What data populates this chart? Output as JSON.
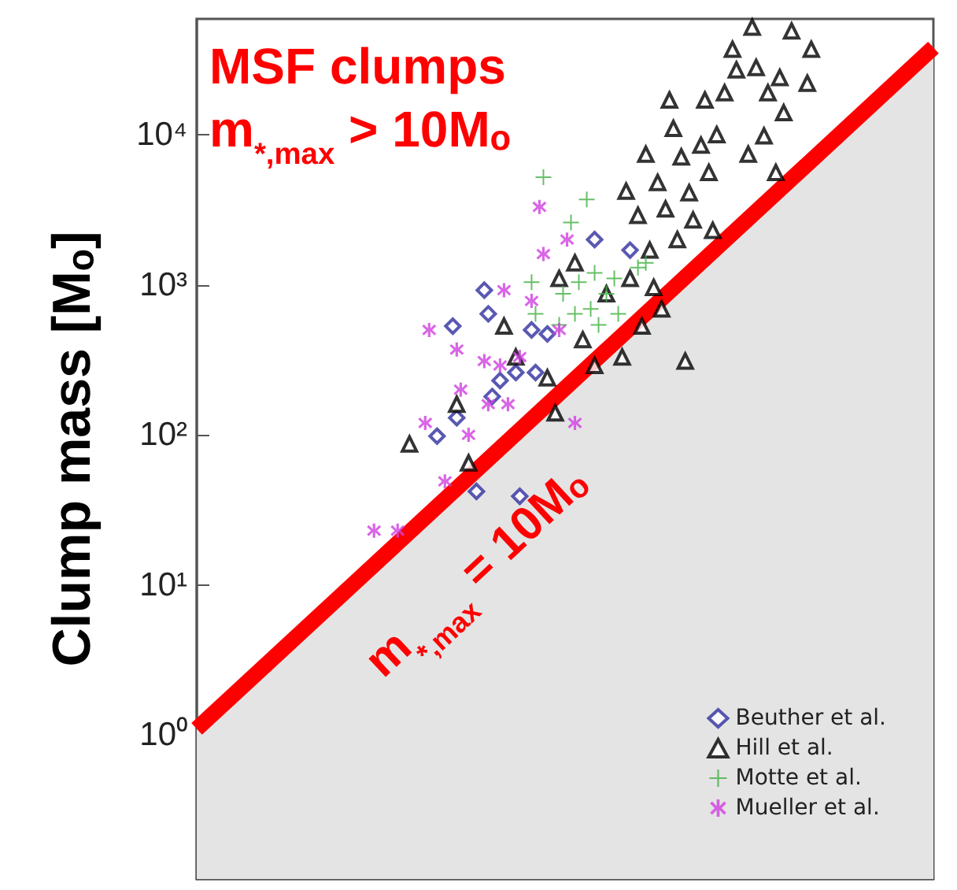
{
  "chart_data": {
    "type": "scatter",
    "ylabel": "Clump mass [Mₒ]",
    "annotations": [
      "MSF clumps",
      "m$_{*,max}$ > 10Mₒ",
      "m$_{*,max}$ = 10Mₒ"
    ],
    "log": "y",
    "categories": [
      null,
      null,
      null,
      null,
      null,
      null,
      null,
      null,
      null,
      null,
      null,
      null,
      null,
      null,
      null,
      null,
      null,
      null,
      null,
      null,
      null,
      null,
      null,
      null,
      null,
      null,
      null,
      null,
      null,
      null,
      null,
      null,
      null,
      null,
      null,
      null,
      null,
      null,
      null,
      null,
      null,
      null,
      null,
      null,
      null,
      null,
      null,
      null,
      null,
      null,
      null,
      null,
      null,
      null,
      null,
      null,
      null,
      null,
      null,
      null,
      null,
      null,
      null,
      null,
      null,
      null,
      null,
      null,
      null,
      null,
      null,
      null,
      null,
      null,
      null,
      null,
      null,
      null,
      null,
      null,
      null,
      null,
      null,
      null,
      null,
      null,
      null,
      null,
      null,
      null,
      null,
      null,
      null,
      null,
      null,
      null,
      null,
      null,
      null,
      null,
      null,
      null,
      null,
      null,
      null,
      null,
      null,
      null,
      null,
      null,
      null,
      null,
      null,
      null,
      null,
      null,
      null,
      null,
      null,
      null,
      null,
      null,
      null,
      null,
      null,
      null,
      null,
      null,
      null,
      null,
      null,
      null,
      null,
      null,
      null,
      null,
      null,
      null,
      null,
      null,
      null,
      null,
      null,
      null,
      null,
      null,
      null,
      null,
      null,
      null,
      null,
      null,
      null,
      null,
      null,
      null,
      null,
      null,
      null,
      null,
      null,
      null,
      null,
      null,
      null,
      null,
      null,
      null,
      null,
      null,
      null,
      null,
      null,
      null,
      null,
      null,
      null,
      null,
      null,
      null,
      null,
      null,
      null,
      null,
      null,
      null,
      null,
      null
    ],
    "ylim": [
      0.11,
      59000
    ],
    "yticks": [
      {
        "value": 1,
        "label": "10⁰"
      },
      {
        "value": 10,
        "label": "10¹"
      },
      {
        "value": 100,
        "label": "10²"
      },
      {
        "value": 1000,
        "label": "10³"
      },
      {
        "value": 10000,
        "label": "10⁴"
      }
    ],
    "tick_labels": "y",
    "grid": false,
    "legend": "bottom right",
    "series": [
      {
        "type": "area",
        "color": "#ff0000",
        "values": [
          1.1,
          null,
          null,
          null,
          null,
          null,
          null,
          null,
          null,
          null,
          null,
          null,
          null,
          null,
          null,
          null,
          null,
          null,
          null,
          null,
          null,
          null,
          null,
          null,
          null,
          null,
          null,
          null,
          null,
          null,
          null,
          null,
          null,
          null,
          null,
          null,
          null,
          null,
          null,
          null,
          null,
          null,
          null,
          null,
          null,
          null,
          null,
          null,
          null,
          null,
          null,
          null,
          null,
          null,
          null,
          null,
          null,
          null,
          null,
          null,
          null,
          null,
          null,
          null,
          null,
          null,
          null,
          null,
          null,
          null,
          null,
          null,
          null,
          null,
          null,
          null,
          null,
          null,
          null,
          null,
          null,
          null,
          null,
          null,
          null,
          null,
          null,
          null,
          null,
          null,
          null,
          null,
          null,
          null,
          null,
          null,
          null,
          null,
          null,
          null,
          null,
          null,
          null,
          null,
          null,
          null,
          null,
          null,
          null,
          null,
          null,
          null,
          null,
          null,
          null,
          null,
          null,
          null,
          null,
          null,
          null,
          null,
          null,
          null,
          null,
          null,
          null,
          null,
          null,
          null,
          null,
          null,
          null,
          null,
          null,
          null,
          null,
          null,
          null,
          null,
          null,
          null,
          null,
          null,
          null,
          null,
          null,
          null,
          null,
          null,
          null,
          null,
          null,
          null,
          null,
          null,
          null,
          null,
          null,
          null,
          null,
          null,
          null,
          null,
          null,
          null,
          null,
          null,
          null,
          null,
          null,
          null,
          null,
          null,
          null,
          null,
          null,
          null,
          null,
          null,
          null,
          null,
          null,
          null,
          null,
          null,
          null,
          38000
        ]
      },
      {
        "name": "Beuther et al.",
        "color": "#3030a0",
        "marker": "diamond",
        "values": [
          null,
          null,
          null,
          null,
          null,
          null,
          null,
          null,
          null,
          null,
          null,
          null,
          null,
          null,
          null,
          null,
          null,
          null,
          null,
          null,
          null,
          null,
          null,
          null,
          null,
          null,
          null,
          null,
          null,
          null,
          null,
          null,
          null,
          null,
          null,
          null,
          null,
          null,
          null,
          null,
          null,
          null,
          null,
          null,
          null,
          null,
          null,
          null,
          null,
          null,
          null,
          null,
          null,
          null,
          null,
          null,
          null,
          null,
          null,
          null,
          null,
          98,
          null,
          null,
          null,
          530,
          130,
          null,
          null,
          null,
          null,
          42,
          null,
          920,
          640,
          180,
          null,
          230,
          null,
          null,
          null,
          260,
          39,
          null,
          null,
          500,
          260,
          null,
          null,
          470,
          null,
          null,
          null,
          null,
          null,
          null,
          null,
          null,
          null,
          null,
          null,
          2000,
          null,
          null,
          null,
          null,
          null,
          null,
          null,
          null,
          1700,
          null,
          null,
          null,
          null,
          null,
          null,
          null,
          null,
          null,
          null,
          null,
          null,
          null,
          null,
          null,
          null,
          null,
          null,
          null,
          null,
          null,
          null,
          null,
          null,
          null,
          null,
          null,
          null,
          null,
          null,
          null,
          null,
          null,
          null,
          null,
          null,
          null,
          null,
          null,
          null,
          null,
          null,
          null,
          null,
          null,
          null,
          null,
          null,
          null,
          null,
          null,
          null,
          null,
          null,
          null,
          null,
          null,
          null,
          null,
          null,
          null,
          null,
          null,
          null,
          null,
          null,
          null,
          null,
          null,
          null,
          null,
          null,
          null,
          null,
          null,
          null,
          null
        ]
      },
      {
        "name": "Hill et al.",
        "color": "#000000",
        "marker": "triangle",
        "values": [
          null,
          null,
          null,
          null,
          null,
          null,
          null,
          null,
          null,
          null,
          null,
          null,
          null,
          null,
          null,
          null,
          null,
          null,
          null,
          null,
          null,
          null,
          null,
          null,
          null,
          null,
          null,
          null,
          null,
          null,
          null,
          null,
          null,
          null,
          null,
          null,
          null,
          null,
          null,
          null,
          null,
          null,
          null,
          null,
          null,
          null,
          null,
          null,
          null,
          null,
          null,
          null,
          null,
          null,
          87,
          null,
          null,
          null,
          null,
          null,
          null,
          null,
          null,
          null,
          null,
          null,
          160,
          null,
          null,
          65,
          null,
          null,
          null,
          null,
          null,
          null,
          null,
          null,
          530,
          null,
          null,
          330,
          null,
          null,
          null,
          null,
          null,
          null,
          null,
          240,
          null,
          140,
          1100,
          null,
          null,
          null,
          1400,
          null,
          430,
          null,
          null,
          290,
          null,
          null,
          870,
          null,
          null,
          null,
          330,
          4200,
          1100,
          null,
          2900,
          530,
          7400,
          1700,
          960,
          4800,
          690,
          3200,
          17000,
          11000,
          2000,
          7100,
          310,
          4100,
          2700,
          null,
          8500,
          17000,
          5600,
          2300,
          10000,
          null,
          19000,
          null,
          37000,
          27000,
          null,
          null,
          7400,
          52000,
          28000,
          null,
          9800,
          19000,
          null,
          5600,
          24000,
          14000,
          null,
          49000,
          null,
          null,
          null,
          22000,
          37000,
          null,
          null,
          null,
          null,
          null,
          null,
          null,
          null,
          null,
          null,
          null,
          null,
          null,
          null,
          null,
          null,
          null,
          null,
          null,
          null,
          null,
          null,
          null,
          null,
          null,
          null,
          null,
          null,
          null,
          null,
          null
        ]
      },
      {
        "name": "Motte et al.",
        "color": "#40b040",
        "marker": "cross",
        "values": [
          null,
          null,
          null,
          null,
          null,
          null,
          null,
          null,
          null,
          null,
          null,
          null,
          null,
          null,
          null,
          null,
          null,
          null,
          null,
          null,
          null,
          null,
          null,
          null,
          null,
          null,
          null,
          null,
          null,
          null,
          null,
          null,
          null,
          null,
          null,
          null,
          null,
          null,
          null,
          null,
          null,
          null,
          null,
          null,
          null,
          null,
          null,
          null,
          null,
          null,
          null,
          null,
          null,
          null,
          null,
          null,
          null,
          null,
          null,
          null,
          null,
          null,
          null,
          null,
          null,
          null,
          null,
          null,
          null,
          null,
          null,
          null,
          null,
          null,
          null,
          null,
          null,
          null,
          null,
          null,
          null,
          null,
          null,
          null,
          null,
          1040,
          640,
          null,
          5200,
          null,
          null,
          null,
          540,
          870,
          null,
          2600,
          640,
          1040,
          null,
          3700,
          690,
          1200,
          540,
          null,
          870,
          null,
          1100,
          640,
          null,
          null,
          null,
          null,
          1300,
          null,
          1400,
          null,
          null,
          null,
          null,
          null,
          null,
          null,
          null,
          null,
          null,
          null,
          null,
          null,
          null,
          null,
          null,
          null,
          null,
          null,
          null,
          null,
          null,
          null,
          null,
          null,
          null,
          null,
          null,
          null,
          null,
          null,
          null,
          null,
          null,
          null,
          null,
          null,
          null,
          null,
          null,
          null,
          null,
          null,
          null,
          null,
          null,
          null,
          null,
          null,
          null,
          null,
          null,
          null,
          null,
          null,
          null,
          null,
          null,
          null,
          null,
          null,
          null,
          null,
          null,
          null,
          null,
          null,
          null,
          null,
          null,
          null,
          null,
          null
        ]
      },
      {
        "name": "Mueller et al.",
        "color": "#d040e0",
        "marker": "star",
        "values": [
          null,
          null,
          null,
          null,
          null,
          null,
          null,
          null,
          null,
          null,
          null,
          null,
          null,
          null,
          null,
          null,
          null,
          null,
          null,
          null,
          null,
          null,
          null,
          null,
          null,
          null,
          null,
          null,
          null,
          null,
          null,
          null,
          null,
          null,
          null,
          null,
          null,
          null,
          null,
          null,
          null,
          null,
          null,
          null,
          null,
          23,
          null,
          null,
          null,
          null,
          null,
          23,
          null,
          null,
          null,
          null,
          null,
          null,
          120,
          500,
          null,
          null,
          null,
          49,
          null,
          null,
          370,
          200,
          null,
          100,
          null,
          null,
          null,
          310,
          160,
          null,
          null,
          290,
          920,
          160,
          null,
          null,
          330,
          null,
          null,
          780,
          null,
          3300,
          1600,
          null,
          null,
          null,
          500,
          null,
          2000,
          null,
          120,
          null,
          null,
          null,
          null,
          null,
          null,
          null,
          null,
          null,
          null,
          null,
          null,
          null,
          null,
          null,
          null,
          null,
          null,
          null,
          null,
          null,
          null,
          null,
          null,
          null,
          null,
          null,
          null,
          null,
          null,
          null,
          null,
          null,
          null,
          null,
          null,
          null,
          null,
          null,
          null,
          null,
          null,
          null,
          null,
          null,
          null,
          null,
          null,
          null,
          null,
          null,
          null,
          null,
          null,
          null,
          null,
          null,
          null,
          null,
          null,
          null,
          null,
          null,
          null,
          null,
          null,
          null,
          null,
          null,
          null,
          null,
          null,
          null,
          null,
          null,
          null,
          null,
          null,
          null,
          null,
          null,
          null,
          null,
          null,
          null,
          null,
          null,
          null,
          null,
          null,
          null
        ]
      }
    ]
  }
}
